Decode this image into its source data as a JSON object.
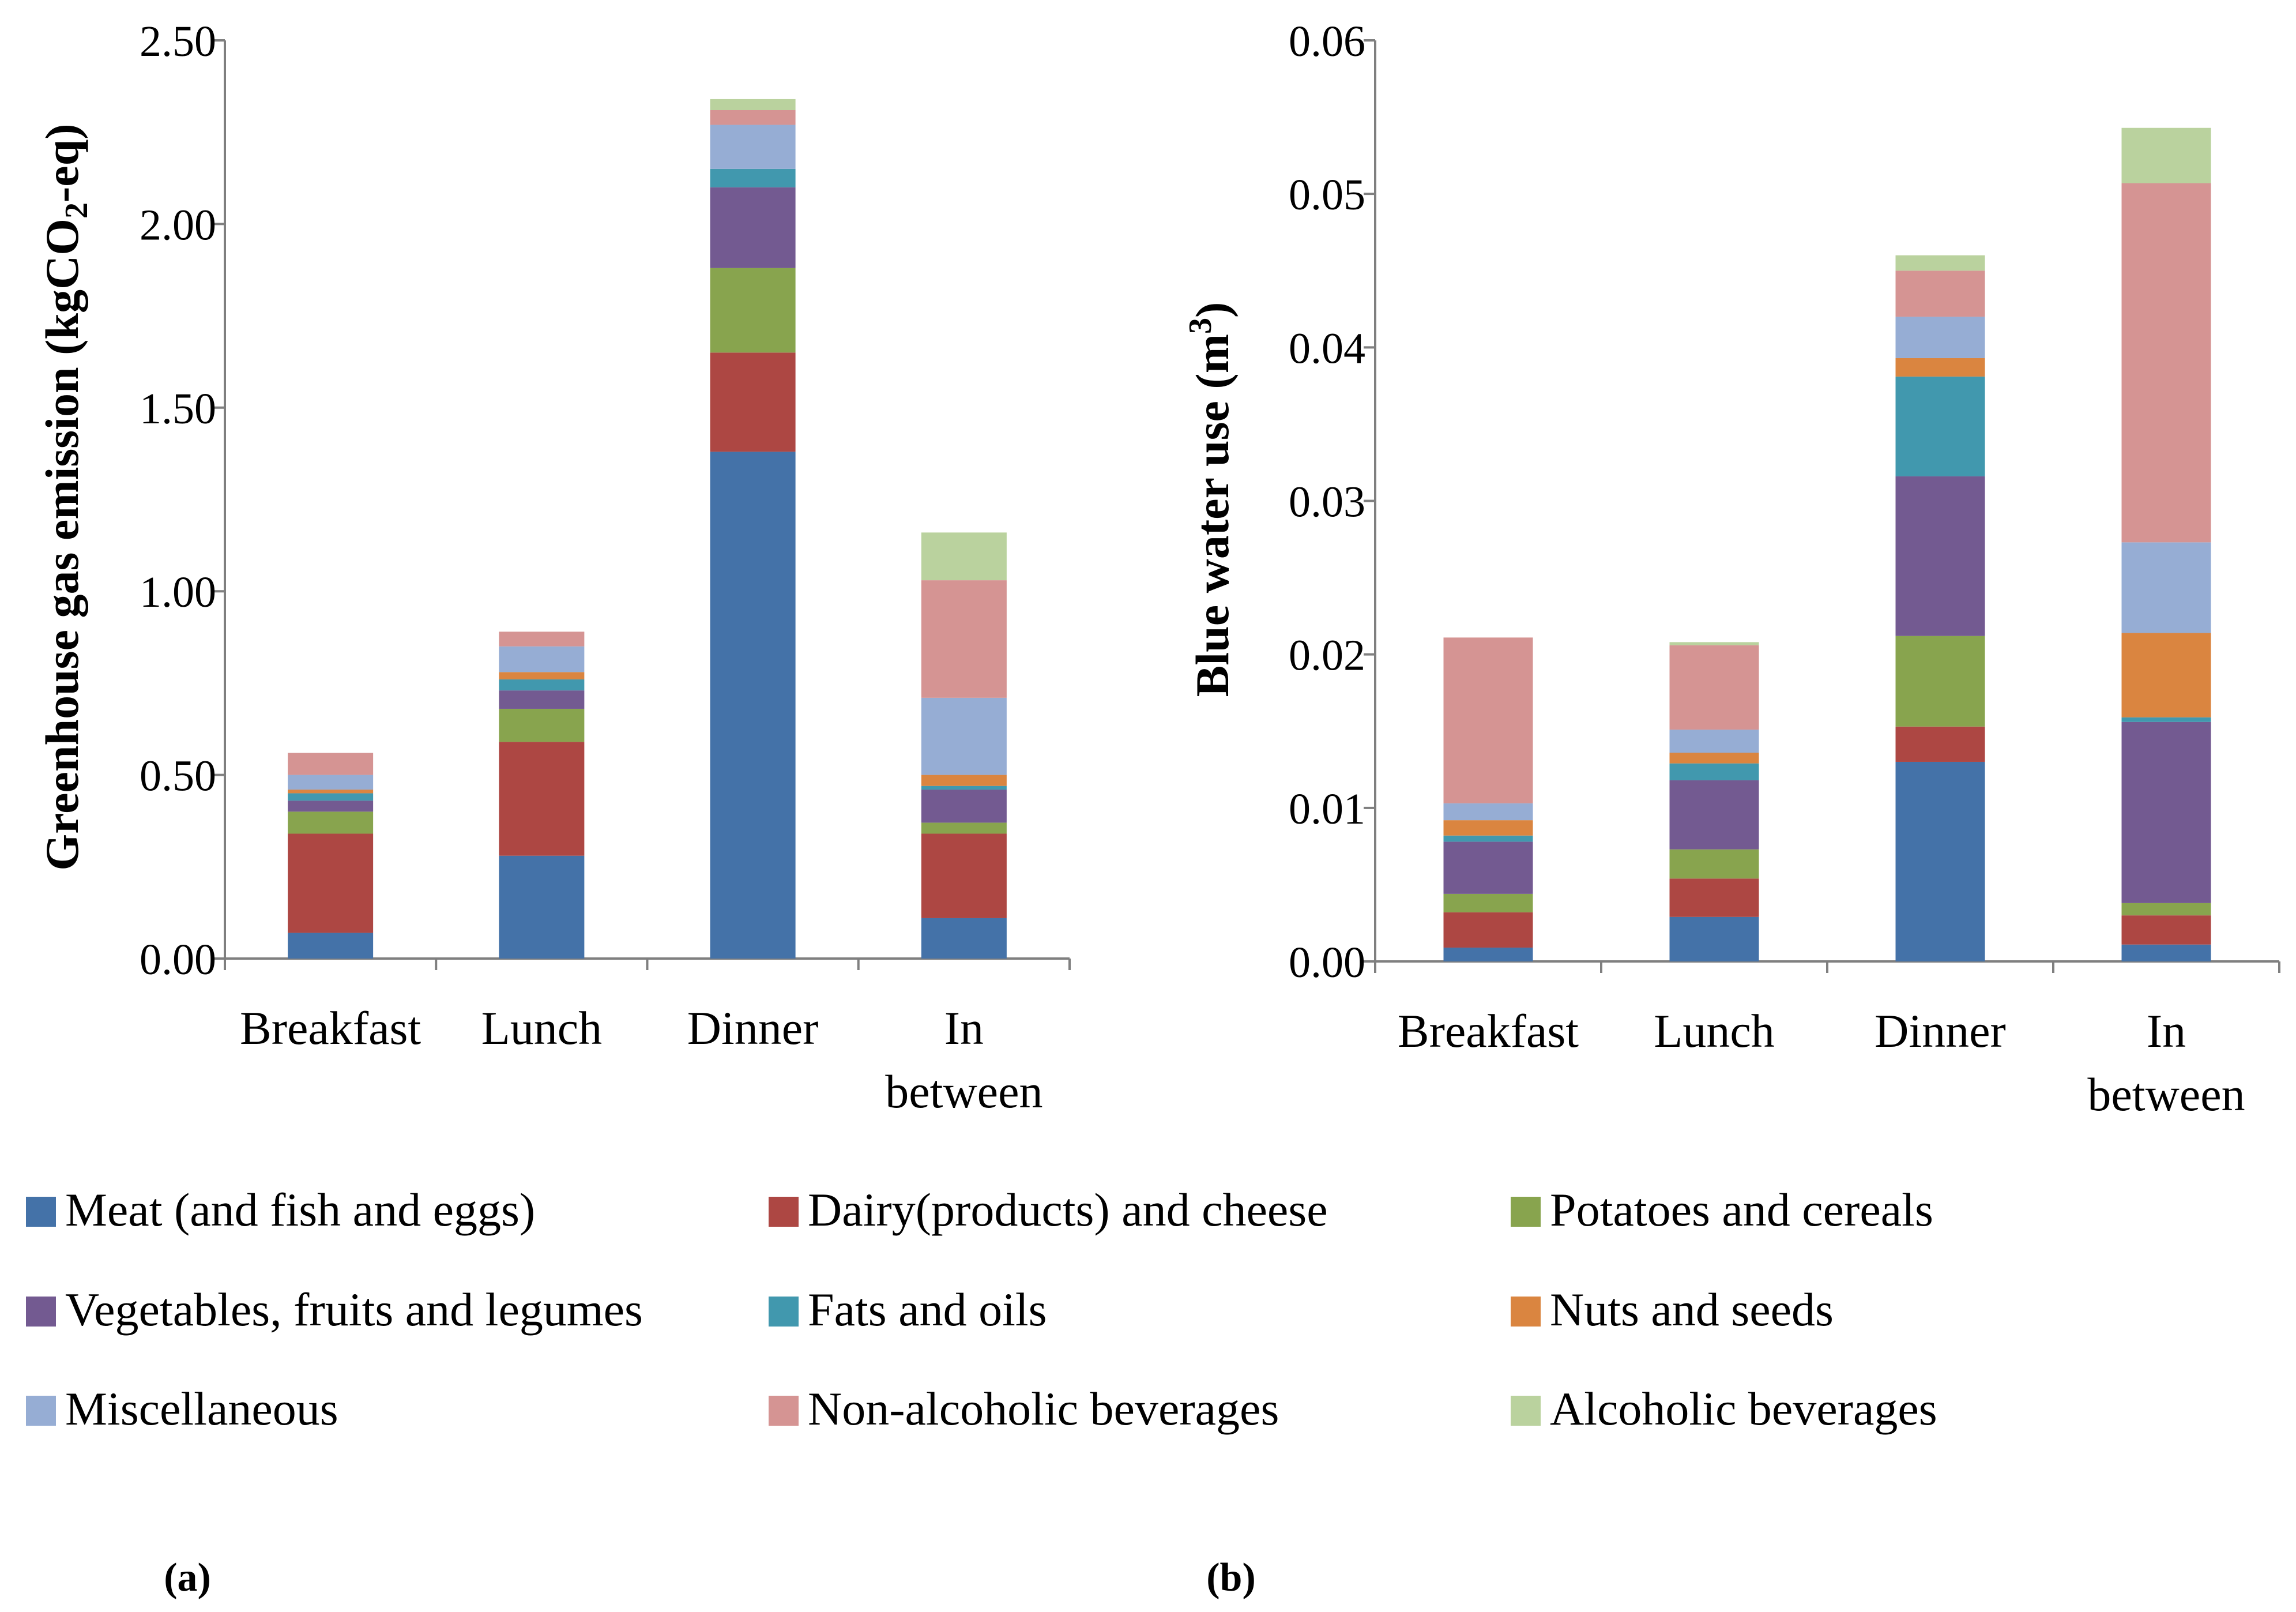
{
  "colors": {
    "Meat (and fish and eggs)": "#4472A8",
    "Dairy(products) and cheese": "#AD4743",
    "Potatoes and cereals": "#88A44E",
    "Vegetables, fruits and legumes": "#735A91",
    "Fats and oils": "#4198AE",
    "Nuts and seeds": "#DA8540",
    "Miscellaneous": "#96ADD4",
    "Non-alcoholic beverages": "#D59493",
    "Alcoholic beverages": "#BAD29E"
  },
  "legend": {
    "items": [
      "Meat (and fish and eggs)",
      "Dairy(products) and cheese",
      "Potatoes and cereals",
      "Vegetables, fruits and legumes",
      "Fats and oils",
      "Nuts and seeds",
      "Miscellaneous",
      "Non-alcoholic beverages",
      "Alcoholic beverages"
    ]
  },
  "panels": {
    "a": "(a)",
    "b": "(b)"
  },
  "chart_data": [
    {
      "type": "bar",
      "stacked": true,
      "title": "",
      "xlabel": "",
      "ylabel": "Greenhouse gas emission (kgCO2-eq)",
      "ylabel_parts": [
        "Greenhouse gas emission (kgCO",
        "2",
        "-eq)"
      ],
      "ylim": [
        0,
        2.5
      ],
      "yticks": [
        "0.00",
        "0.50",
        "1.00",
        "1.50",
        "2.00",
        "2.50"
      ],
      "categories": [
        [
          "Breakfast"
        ],
        [
          "Lunch"
        ],
        [
          "Dinner"
        ],
        [
          "In",
          "between"
        ]
      ],
      "series": [
        {
          "name": "Meat (and fish and eggs)",
          "values": [
            0.07,
            0.28,
            1.38,
            0.11
          ]
        },
        {
          "name": "Dairy(products) and cheese",
          "values": [
            0.27,
            0.31,
            0.27,
            0.23
          ]
        },
        {
          "name": "Potatoes and cereals",
          "values": [
            0.06,
            0.09,
            0.23,
            0.03
          ]
        },
        {
          "name": "Vegetables, fruits and legumes",
          "values": [
            0.03,
            0.05,
            0.22,
            0.09
          ]
        },
        {
          "name": "Fats and oils",
          "values": [
            0.02,
            0.03,
            0.05,
            0.01
          ]
        },
        {
          "name": "Nuts and seeds",
          "values": [
            0.01,
            0.02,
            0.0,
            0.03
          ]
        },
        {
          "name": "Miscellaneous",
          "values": [
            0.04,
            0.07,
            0.12,
            0.21
          ]
        },
        {
          "name": "Non-alcoholic beverages",
          "values": [
            0.06,
            0.04,
            0.04,
            0.32
          ]
        },
        {
          "name": "Alcoholic beverages",
          "values": [
            0.0,
            0.0,
            0.03,
            0.13
          ]
        }
      ]
    },
    {
      "type": "bar",
      "stacked": true,
      "title": "",
      "xlabel": "",
      "ylabel": "Blue water use (m3)",
      "ylabel_parts": [
        "Blue water use (m",
        "3",
        ")"
      ],
      "ylim": [
        0,
        0.06
      ],
      "yticks": [
        "0.00",
        "0.01",
        "0.02",
        "0.03",
        "0.04",
        "0.05",
        "0.06"
      ],
      "categories": [
        [
          "Breakfast"
        ],
        [
          "Lunch"
        ],
        [
          "Dinner"
        ],
        [
          "In",
          "between"
        ]
      ],
      "series": [
        {
          "name": "Meat (and fish and eggs)",
          "values": [
            0.0009,
            0.0029,
            0.013,
            0.0011
          ]
        },
        {
          "name": "Dairy(products) and cheese",
          "values": [
            0.0023,
            0.0025,
            0.0023,
            0.0019
          ]
        },
        {
          "name": "Potatoes and cereals",
          "values": [
            0.0012,
            0.0019,
            0.0059,
            0.0008
          ]
        },
        {
          "name": "Vegetables, fruits and legumes",
          "values": [
            0.0034,
            0.0045,
            0.0104,
            0.0118
          ]
        },
        {
          "name": "Fats and oils",
          "values": [
            0.0004,
            0.0011,
            0.0065,
            0.0003
          ]
        },
        {
          "name": "Nuts and seeds",
          "values": [
            0.001,
            0.0007,
            0.0012,
            0.0055
          ]
        },
        {
          "name": "Miscellaneous",
          "values": [
            0.0011,
            0.0015,
            0.0027,
            0.0059
          ]
        },
        {
          "name": "Non-alcoholic beverages",
          "values": [
            0.0108,
            0.0055,
            0.003,
            0.0234
          ]
        },
        {
          "name": "Alcoholic beverages",
          "values": [
            0.0,
            0.0002,
            0.001,
            0.0036
          ]
        }
      ]
    }
  ]
}
